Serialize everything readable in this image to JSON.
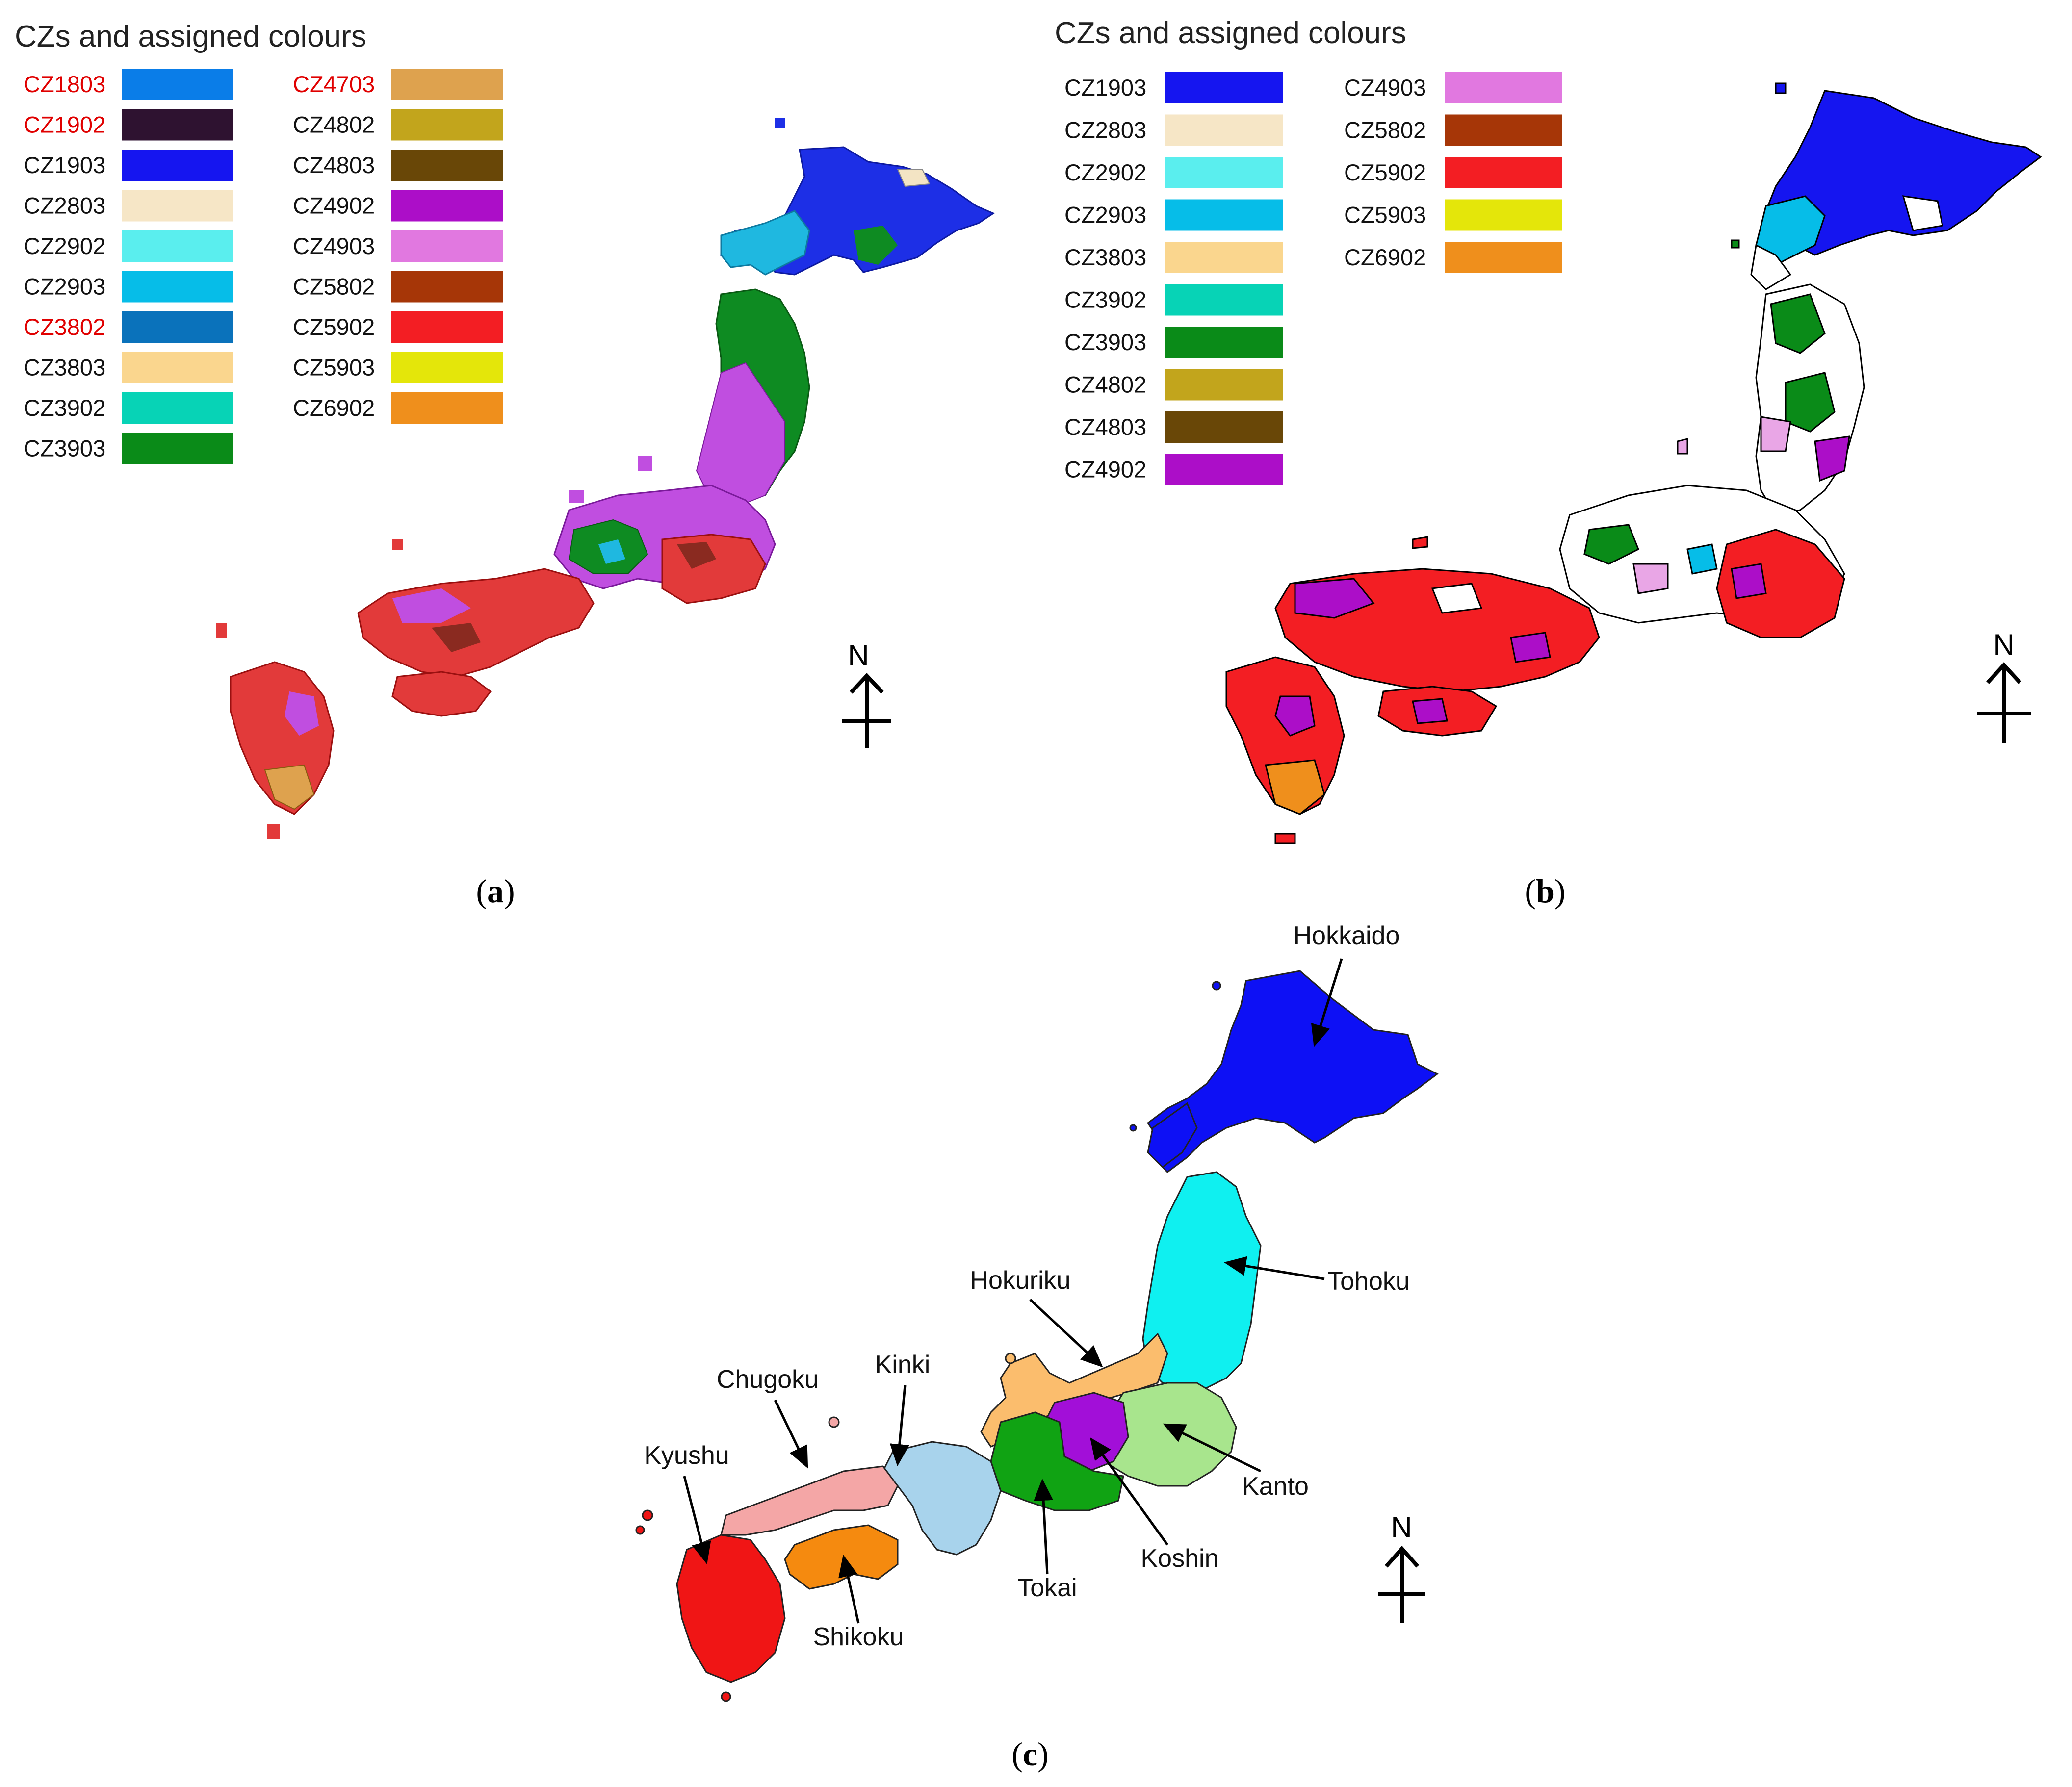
{
  "panel_a": {
    "label_open": "(",
    "label_letter": "a",
    "label_close": ")",
    "legend_title": "CZs and assigned colours",
    "legend_col1": [
      {
        "code": "CZ1803",
        "color": "#0a7de8",
        "highlight": true
      },
      {
        "code": "CZ1902",
        "color": "#2e1230",
        "highlight": true
      },
      {
        "code": "CZ1903",
        "color": "#1515f0",
        "highlight": false
      },
      {
        "code": "CZ2803",
        "color": "#f6e6c6",
        "highlight": false
      },
      {
        "code": "CZ2902",
        "color": "#5aeeee",
        "highlight": false
      },
      {
        "code": "CZ2903",
        "color": "#06bde8",
        "highlight": false
      },
      {
        "code": "CZ3802",
        "color": "#0a72bb",
        "highlight": true
      },
      {
        "code": "CZ3803",
        "color": "#fad68e",
        "highlight": false
      },
      {
        "code": "CZ3902",
        "color": "#07d3b6",
        "highlight": false
      },
      {
        "code": "CZ3903",
        "color": "#0a8b18",
        "highlight": false
      }
    ],
    "legend_col2": [
      {
        "code": "CZ4703",
        "color": "#dea24e",
        "highlight": true
      },
      {
        "code": "CZ4802",
        "color": "#c2a51c",
        "highlight": false
      },
      {
        "code": "CZ4803",
        "color": "#694707",
        "highlight": false
      },
      {
        "code": "CZ4902",
        "color": "#ac0ec8",
        "highlight": false
      },
      {
        "code": "CZ4903",
        "color": "#e178e0",
        "highlight": false
      },
      {
        "code": "CZ5802",
        "color": "#a63607",
        "highlight": false
      },
      {
        "code": "CZ5902",
        "color": "#f31e23",
        "highlight": false
      },
      {
        "code": "CZ5903",
        "color": "#e4e60a",
        "highlight": false
      },
      {
        "code": "CZ6902",
        "color": "#ef8f1c",
        "highlight": false
      }
    ],
    "north_label": "N"
  },
  "panel_b": {
    "label_open": "(",
    "label_letter": "b",
    "label_close": ")",
    "legend_title": "CZs and assigned colours",
    "legend_col1": [
      {
        "code": "CZ1903",
        "color": "#1515f0"
      },
      {
        "code": "CZ2803",
        "color": "#f6e6c6"
      },
      {
        "code": "CZ2902",
        "color": "#5aeeee"
      },
      {
        "code": "CZ2903",
        "color": "#06bde8"
      },
      {
        "code": "CZ3803",
        "color": "#fad68e"
      },
      {
        "code": "CZ3902",
        "color": "#07d3b6"
      },
      {
        "code": "CZ3903",
        "color": "#0a8b18"
      },
      {
        "code": "CZ4802",
        "color": "#c2a51c"
      },
      {
        "code": "CZ4803",
        "color": "#694707"
      },
      {
        "code": "CZ4902",
        "color": "#ac0ec8"
      }
    ],
    "legend_col2": [
      {
        "code": "CZ4903",
        "color": "#e178e0"
      },
      {
        "code": "CZ5802",
        "color": "#a63607"
      },
      {
        "code": "CZ5902",
        "color": "#f31e23"
      },
      {
        "code": "CZ5903",
        "color": "#e4e60a"
      },
      {
        "code": "CZ6902",
        "color": "#ef8f1c"
      }
    ],
    "north_label": "N"
  },
  "panel_c": {
    "label_open": "(",
    "label_letter": "c",
    "label_close": ")",
    "north_label": "N",
    "regions": {
      "hokkaido": {
        "name": "Hokkaido",
        "color": "#0d10f5"
      },
      "tohoku": {
        "name": "Tohoku",
        "color": "#0ff0f0"
      },
      "kanto": {
        "name": "Kanto",
        "color": "#a8e58d"
      },
      "koshin": {
        "name": "Koshin",
        "color": "#a20fd8"
      },
      "tokai": {
        "name": "Tokai",
        "color": "#10a313"
      },
      "hokuriku": {
        "name": "Hokuriku",
        "color": "#fbbd6d"
      },
      "kinki": {
        "name": "Kinki",
        "color": "#a8d3ec"
      },
      "chugoku": {
        "name": "Chugoku",
        "color": "#f4a6a6"
      },
      "shikoku": {
        "name": "Shikoku",
        "color": "#f58a0f"
      },
      "kyushu": {
        "name": "Kyushu",
        "color": "#f01515"
      }
    }
  }
}
